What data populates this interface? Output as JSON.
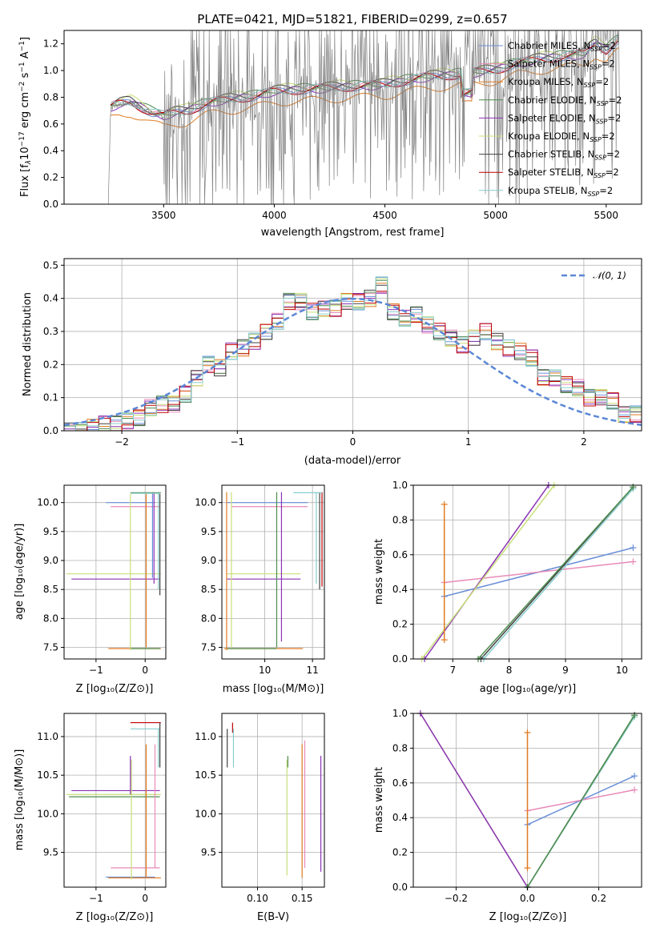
{
  "colors": [
    "#6a8fd8",
    "#e88ab8",
    "#e07b22",
    "#4d8c4d",
    "#8b33b5",
    "#c8e078",
    "#404040",
    "#c00000",
    "#88cccc"
  ],
  "chart_data": [
    {
      "type": "line",
      "title": "PLATE=0421, MJD=51821, FIBERID=0299, z=0.657",
      "xlabel": "wavelength [Angstrom, rest frame]",
      "ylabel": "Flux [f$_\\lambda$10$^{-17}$ erg cm$^{-2}$ s$^{-1}$ A$^{-1}$]",
      "ylabel_parts": {
        "a": "Flux [f",
        "b": "λ",
        "c": "10",
        "d": "−17",
        "e": " erg cm",
        "f": "−2",
        "g": " s",
        "h": "−1",
        "i": " A",
        "j": "−1",
        "k": "]"
      },
      "xlim": [
        3050,
        5660
      ],
      "ylim": [
        0,
        1.3
      ],
      "xticks": [
        3500,
        4000,
        4500,
        5000,
        5500
      ],
      "yticks": [
        "0.0",
        "0.2",
        "0.4",
        "0.6",
        "0.8",
        "1.0",
        "1.2"
      ],
      "legend": [
        {
          "a": "Chabrier MILES, N",
          "b": "SSP",
          "c": "=2"
        },
        {
          "a": "Salpeter MILES, N",
          "b": "SSP",
          "c": "=2"
        },
        {
          "a": "Kroupa MILES, N",
          "b": "SSP",
          "c": "=2"
        },
        {
          "a": "Chabrier ELODIE, N",
          "b": "SSP",
          "c": "=2"
        },
        {
          "a": "Salpeter ELODIE, N",
          "b": "SSP",
          "c": "=2"
        },
        {
          "a": "Kroupa ELODIE, N",
          "b": "SSP",
          "c": "=2"
        },
        {
          "a": "Chabrier STELIB, N",
          "b": "SSP",
          "c": "=2"
        },
        {
          "a": "Salpeter STELIB, N",
          "b": "SSP",
          "c": "=2"
        },
        {
          "a": "Kroupa STELIB, N",
          "b": "SSP",
          "c": "=2"
        }
      ],
      "legend_position": "upper right",
      "data_curve": [
        [
          3250,
          0.0
        ],
        [
          3260,
          0.72
        ],
        [
          3300,
          0.75
        ],
        [
          3350,
          0.76
        ],
        [
          3400,
          0.72
        ],
        [
          3450,
          0.68
        ],
        [
          3500,
          0.66
        ],
        [
          3550,
          0.68
        ],
        [
          3600,
          0.69
        ],
        [
          3650,
          0.72
        ],
        [
          3700,
          0.75
        ],
        [
          3750,
          0.77
        ],
        [
          3800,
          0.78
        ],
        [
          3850,
          0.79
        ],
        [
          3900,
          0.8
        ],
        [
          3950,
          0.82
        ],
        [
          4000,
          0.84
        ],
        [
          4100,
          0.85
        ],
        [
          4200,
          0.86
        ],
        [
          4300,
          0.87
        ],
        [
          4400,
          0.88
        ],
        [
          4500,
          0.89
        ],
        [
          4600,
          0.92
        ],
        [
          4700,
          0.95
        ],
        [
          4800,
          0.96
        ],
        [
          4900,
          0.98
        ],
        [
          5000,
          1.0
        ],
        [
          5100,
          1.05
        ],
        [
          5200,
          1.08
        ],
        [
          5300,
          1.1
        ],
        [
          5400,
          1.12
        ],
        [
          5450,
          1.2
        ],
        [
          5500,
          1.15
        ],
        [
          5550,
          1.22
        ]
      ],
      "model_offsets": [
        0.0,
        0.01,
        -0.08,
        0.02,
        0.0,
        0.03,
        0.02,
        0.0,
        0.01
      ]
    },
    {
      "type": "histogram",
      "xlabel": "(data-model)/error",
      "ylabel": "Normed distribution",
      "xlim": [
        -2.5,
        2.5
      ],
      "ylim": [
        0,
        0.52
      ],
      "xticks": [
        "−2",
        "−1",
        "0",
        "1",
        "2"
      ],
      "yticks": [
        "0.0",
        "0.1",
        "0.2",
        "0.3",
        "0.4",
        "0.5"
      ],
      "legend": [
        "𝒩(0, 1)"
      ],
      "legend_position": "upper right",
      "bin_edges_start": -2.5,
      "bin_width": 0.1,
      "values": [
        0.0,
        0.0,
        0.01,
        0.02,
        0.02,
        0.03,
        0.04,
        0.07,
        0.08,
        0.08,
        0.11,
        0.16,
        0.2,
        0.19,
        0.24,
        0.25,
        0.27,
        0.3,
        0.33,
        0.39,
        0.39,
        0.36,
        0.37,
        0.37,
        0.39,
        0.39,
        0.4,
        0.44,
        0.36,
        0.34,
        0.35,
        0.32,
        0.3,
        0.28,
        0.26,
        0.28,
        0.3,
        0.27,
        0.25,
        0.24,
        0.22,
        0.16,
        0.16,
        0.14,
        0.13,
        0.1,
        0.1,
        0.09,
        0.05,
        0.05
      ]
    },
    {
      "type": "scatter",
      "xlabel": "Z [log₁₀(Z/Z⊙)]",
      "ylabel": "age  [log₁₀(age/yr)]",
      "xlim": [
        -1.65,
        0.42
      ],
      "ylim": [
        7.3,
        10.3
      ],
      "xticks": [
        "−1",
        "0"
      ],
      "yticks": [
        "7.5",
        "8.0",
        "8.5",
        "9.0",
        "9.5",
        "10.0"
      ]
    },
    {
      "type": "scatter",
      "xlabel": "mass [log₁₀(M/M⊙)]",
      "ylabel": "",
      "xlim": [
        9.1,
        11.25
      ],
      "ylim": [
        7.3,
        10.3
      ],
      "xticks": [
        "10",
        "11"
      ],
      "yticks": [
        "7.5",
        "8.0",
        "8.5",
        "9.0",
        "9.5",
        "10.0"
      ]
    },
    {
      "type": "line",
      "xlabel": "age  [log₁₀(age/yr)]",
      "ylabel": "mass weight",
      "xlim": [
        6.3,
        10.35
      ],
      "ylim": [
        0,
        1.0
      ],
      "xticks": [
        "7",
        "8",
        "9",
        "10"
      ],
      "yticks": [
        "0.0",
        "0.2",
        "0.4",
        "0.6",
        "0.8",
        "1.0"
      ]
    },
    {
      "type": "scatter",
      "xlabel": "Z [log₁₀(Z/Z⊙)]",
      "ylabel": "mass [log₁₀(M/M⊙)]",
      "xlim": [
        -1.65,
        0.42
      ],
      "ylim": [
        9.05,
        11.3
      ],
      "xticks": [
        "−1",
        "0"
      ],
      "yticks": [
        "9.5",
        "10.0",
        "10.5",
        "11.0"
      ]
    },
    {
      "type": "scatter",
      "xlabel": "E(B-V)",
      "ylabel": "",
      "xlim": [
        0.06,
        0.175
      ],
      "ylim": [
        9.05,
        11.3
      ],
      "xticks": [
        "0.10",
        "0.15"
      ],
      "yticks": [
        "9.5",
        "10.0",
        "10.5",
        "11.0"
      ]
    },
    {
      "type": "line",
      "xlabel": "Z [log₁₀(Z/Z⊙)]",
      "ylabel": "mass weight",
      "xlim": [
        -0.32,
        0.32
      ],
      "ylim": [
        0,
        1.0
      ],
      "xticks": [
        "−0.2",
        "0.0",
        "0.2"
      ],
      "yticks": [
        "0.0",
        "0.2",
        "0.4",
        "0.6",
        "0.8",
        "1.0"
      ]
    }
  ]
}
